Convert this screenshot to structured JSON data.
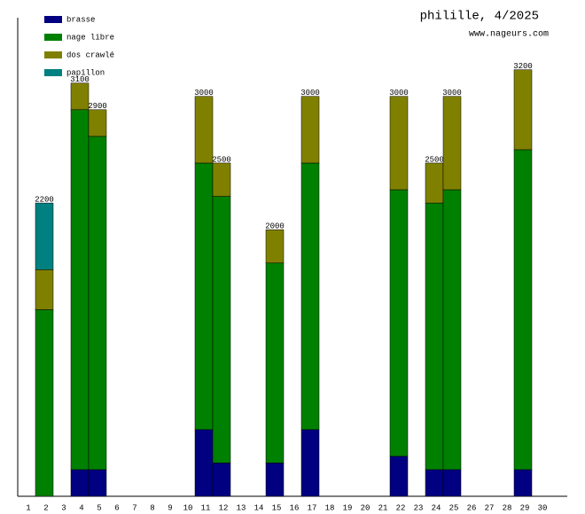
{
  "chart_data": {
    "type": "stacked-bar",
    "title": "philille, 4/2025",
    "subtitle": "www.nageurs.com",
    "categories": [
      1,
      2,
      3,
      4,
      5,
      6,
      7,
      8,
      9,
      10,
      11,
      12,
      13,
      14,
      15,
      16,
      17,
      18,
      19,
      20,
      21,
      22,
      23,
      24,
      25,
      26,
      27,
      28,
      29,
      30
    ],
    "series": [
      {
        "name": "brasse",
        "color": "#000080",
        "values": [
          null,
          0,
          null,
          200,
          200,
          null,
          null,
          null,
          null,
          null,
          500,
          250,
          null,
          null,
          250,
          null,
          500,
          null,
          null,
          null,
          null,
          300,
          null,
          200,
          200,
          null,
          null,
          null,
          200,
          null
        ]
      },
      {
        "name": "nage libre",
        "color": "#008000",
        "values": [
          null,
          1400,
          null,
          2700,
          2500,
          null,
          null,
          null,
          null,
          null,
          2000,
          2000,
          null,
          null,
          1500,
          null,
          2000,
          null,
          null,
          null,
          null,
          2000,
          null,
          2000,
          2100,
          null,
          null,
          null,
          2400,
          null
        ]
      },
      {
        "name": "dos crawlé",
        "color": "#808000",
        "values": [
          null,
          300,
          null,
          200,
          200,
          null,
          null,
          null,
          null,
          null,
          500,
          250,
          null,
          null,
          250,
          null,
          500,
          null,
          null,
          null,
          null,
          700,
          null,
          300,
          700,
          null,
          null,
          null,
          600,
          null
        ]
      },
      {
        "name": "papillon",
        "color": "#008080",
        "values": [
          null,
          500,
          null,
          0,
          0,
          null,
          null,
          null,
          null,
          null,
          0,
          0,
          null,
          null,
          0,
          null,
          0,
          null,
          null,
          null,
          null,
          0,
          null,
          0,
          0,
          null,
          null,
          null,
          0,
          null
        ]
      }
    ],
    "totals": [
      null,
      2200,
      null,
      3100,
      2900,
      null,
      null,
      null,
      null,
      null,
      3000,
      2500,
      null,
      null,
      2000,
      null,
      3000,
      null,
      null,
      null,
      null,
      3000,
      null,
      2500,
      3000,
      null,
      null,
      null,
      3200,
      null
    ],
    "ylim": [
      0,
      3590
    ],
    "legend": "top-left"
  }
}
